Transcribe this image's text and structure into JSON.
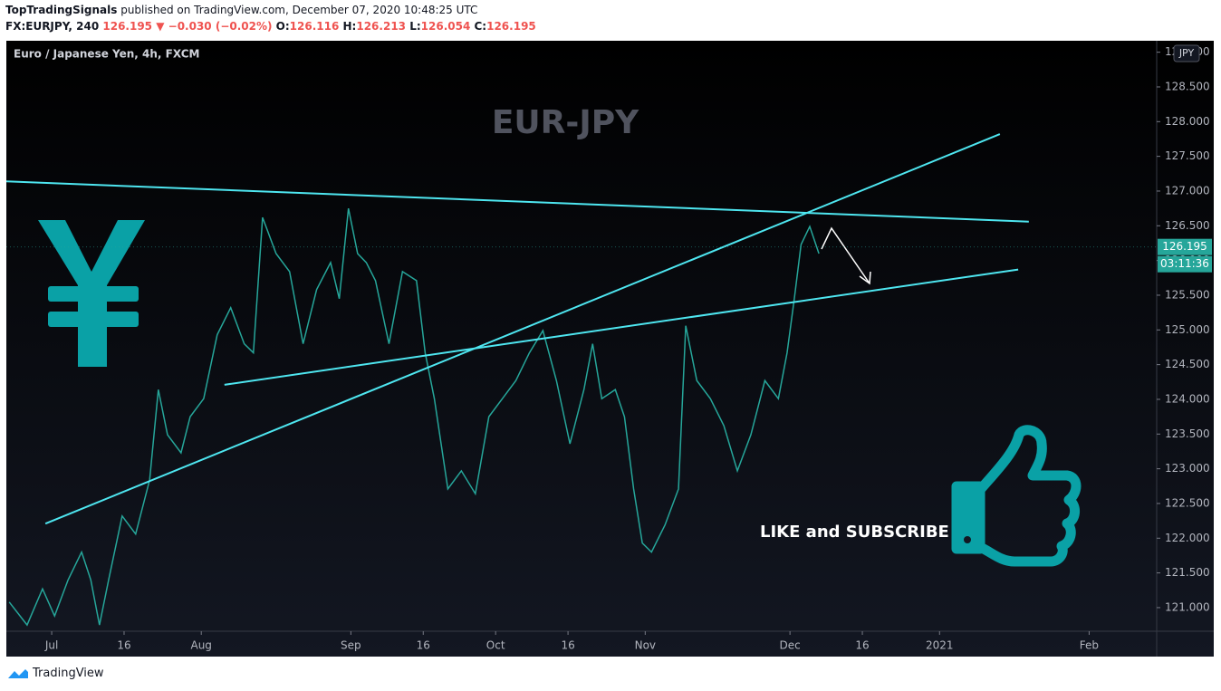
{
  "chart_data": {
    "type": "line",
    "header": {
      "author": "TopTradingSignals",
      "published": " published on TradingView.com, December 07, 2020 10:48:25 UTC",
      "symbol": "FX:EURJPY, 240",
      "last": "126.195",
      "direction": "▼",
      "change": "−0.030 (−0.02%)",
      "o_label": "O:",
      "o": "126.116",
      "h_label": "H:",
      "h": "126.213",
      "l_label": "L:",
      "l": "126.054",
      "c_label": "C:",
      "c": "126.195"
    },
    "legend_title": "Euro / Japanese Yen, 4h, FXCM",
    "watermark": "EUR-JPY",
    "annotation": "LIKE and SUBSCRIBE",
    "currency": "JPY",
    "brand": "TradingView",
    "last_price": 126.195,
    "last_price_label": "126.195",
    "countdown": "03:11:36",
    "color": "#26a69a",
    "trend_color": "#4ee6f0",
    "grid": false,
    "xlim": [
      -9.4,
      229
    ],
    "ylim": [
      120.66,
      129.165
    ],
    "xticks": [
      {
        "value": 0,
        "label": "Jul"
      },
      {
        "value": 15,
        "label": "16"
      },
      {
        "value": 31,
        "label": "Aug"
      },
      {
        "value": 62,
        "label": "Sep"
      },
      {
        "value": 77,
        "label": "16"
      },
      {
        "value": 92,
        "label": "Oct"
      },
      {
        "value": 107,
        "label": "16"
      },
      {
        "value": 123,
        "label": "Nov"
      },
      {
        "value": 153,
        "label": "Dec"
      },
      {
        "value": 168,
        "label": "16"
      },
      {
        "value": 184,
        "label": "2021"
      },
      {
        "value": 215,
        "label": "Feb"
      }
    ],
    "yticks": [
      {
        "value": 121,
        "label": "121.000"
      },
      {
        "value": 121.5,
        "label": "121.500"
      },
      {
        "value": 122,
        "label": "122.000"
      },
      {
        "value": 122.5,
        "label": "122.500"
      },
      {
        "value": 123,
        "label": "123.000"
      },
      {
        "value": 123.5,
        "label": "123.500"
      },
      {
        "value": 124,
        "label": "124.000"
      },
      {
        "value": 124.5,
        "label": "124.500"
      },
      {
        "value": 125,
        "label": "125.000"
      },
      {
        "value": 125.5,
        "label": "125.500"
      },
      {
        "value": 126,
        "label": "126.000"
      },
      {
        "value": 126.5,
        "label": "126.500"
      },
      {
        "value": 127,
        "label": "127.000"
      },
      {
        "value": 127.5,
        "label": "127.500"
      },
      {
        "value": 128,
        "label": "128.000"
      },
      {
        "value": 128.5,
        "label": "128.500"
      },
      {
        "value": 129,
        "label": "129.000"
      }
    ],
    "x": [
      -8.8,
      -5.1,
      -1.9,
      0.6,
      3.4,
      6.2,
      8.1,
      9.9,
      11.8,
      14.6,
      17.4,
      20.3,
      22.1,
      24.0,
      26.8,
      28.7,
      31.5,
      34.3,
      37.1,
      39.9,
      41.8,
      43.7,
      46.5,
      49.3,
      52.1,
      54.9,
      57.8,
      59.6,
      61.5,
      63.4,
      65.2,
      67.1,
      69.9,
      72.7,
      75.6,
      77.4,
      79.3,
      82.1,
      84.9,
      87.8,
      90.6,
      93.4,
      96.2,
      99.0,
      101.8,
      104.6,
      107.4,
      110.3,
      112.1,
      114.0,
      116.8,
      118.7,
      120.6,
      122.4,
      124.3,
      127.1,
      129.9,
      131.4,
      133.7,
      136.5,
      139.3,
      142.1,
      144.9,
      147.8,
      150.6,
      152.4,
      153.9,
      155.3,
      157.1,
      159.0
    ],
    "series": [
      {
        "name": "EURJPY",
        "color": "#26a69a",
        "values": [
          121.08,
          120.75,
          121.27,
          120.88,
          121.4,
          121.8,
          121.4,
          120.75,
          121.4,
          122.32,
          122.06,
          122.84,
          124.14,
          123.49,
          123.23,
          123.75,
          124.01,
          124.93,
          125.32,
          124.8,
          124.67,
          126.62,
          126.1,
          125.84,
          124.8,
          125.58,
          125.97,
          125.45,
          126.75,
          126.1,
          125.97,
          125.71,
          124.8,
          125.84,
          125.71,
          124.67,
          124.01,
          122.71,
          122.97,
          122.64,
          123.75,
          124.01,
          124.27,
          124.67,
          124.99,
          124.27,
          123.36,
          124.14,
          124.8,
          124.01,
          124.14,
          123.75,
          122.71,
          121.93,
          121.8,
          122.19,
          122.71,
          125.06,
          124.27,
          124.01,
          123.62,
          122.97,
          123.49,
          124.27,
          124.01,
          124.67,
          125.45,
          126.23,
          126.49,
          126.1
        ]
      }
    ],
    "trendlines": [
      {
        "x": [
          -9.4,
          202.5
        ],
        "values": [
          127.14,
          126.56
        ]
      },
      {
        "x": [
          -1.3,
          196.5
        ],
        "values": [
          122.21,
          127.82
        ]
      },
      {
        "x": [
          35.8,
          200.3
        ],
        "values": [
          124.21,
          125.87
        ]
      }
    ]
  }
}
